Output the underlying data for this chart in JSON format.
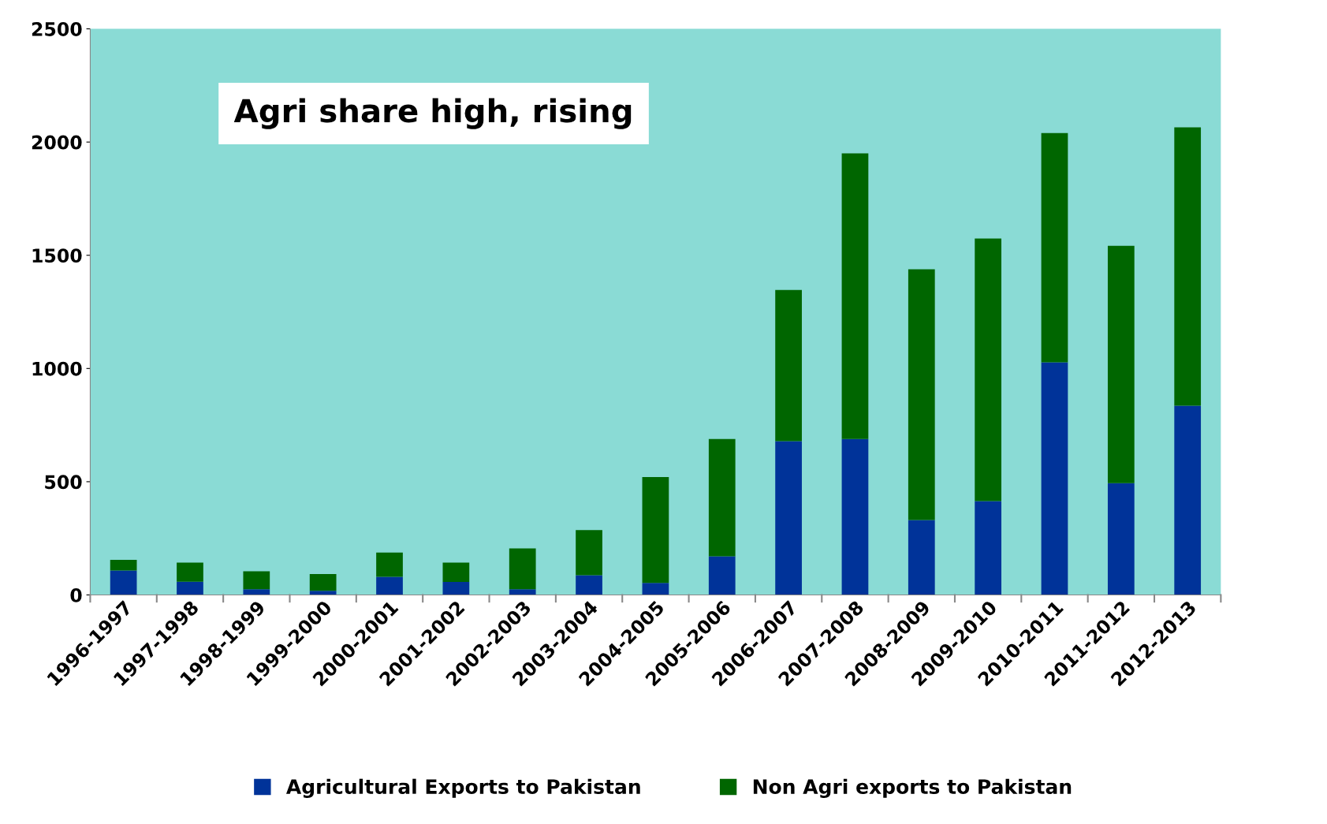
{
  "chart_data": {
    "type": "bar",
    "stacked": true,
    "categories": [
      "1996-1997",
      "1997-1998",
      "1998-1999",
      "1999-2000",
      "2000-2001",
      "2001-2002",
      "2002-2003",
      "2003-2004",
      "2004-2005",
      "2005-2006",
      "2006-2007",
      "2007-2008",
      "2008-2009",
      "2009-2010",
      "2010-2011",
      "2011-2012",
      "2012-2013"
    ],
    "series": [
      {
        "name": "Agricultural Exports to Pakistan",
        "color": "#003399",
        "values": [
          108,
          58,
          25,
          18,
          80,
          57,
          25,
          87,
          53,
          171,
          679,
          689,
          331,
          414,
          1027,
          494,
          836
        ]
      },
      {
        "name": "Non Agri exports to Pakistan",
        "color": "#006600",
        "values": [
          47,
          85,
          79,
          74,
          107,
          86,
          180,
          199,
          468,
          518,
          668,
          1261,
          1107,
          1160,
          1013,
          1048,
          1229
        ]
      }
    ],
    "ylim": [
      0,
      2500
    ],
    "yticks": [
      0,
      500,
      1000,
      1500,
      2000,
      2500
    ],
    "grid": false,
    "legend": "bottom",
    "annotations": [
      "Agri share high, rising"
    ]
  }
}
